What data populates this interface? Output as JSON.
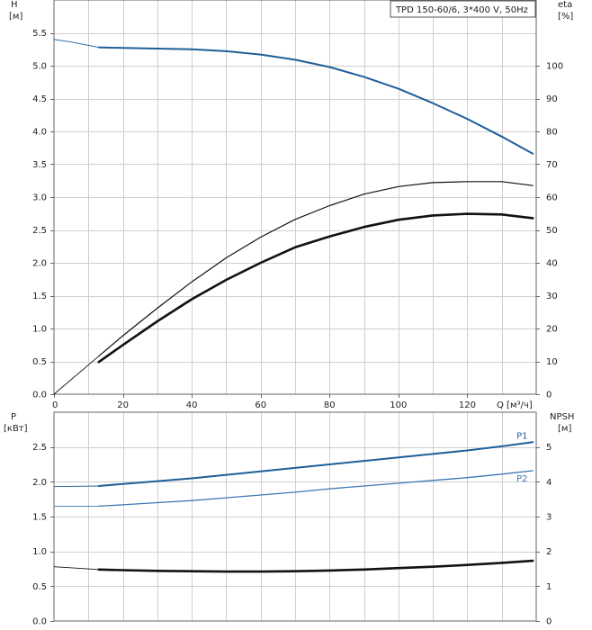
{
  "legend_text": "TPD 150-60/6, 3*400 V, 50Hz",
  "colors": {
    "blue": "#1f5f99",
    "black": "#111111",
    "blue_light": "#3d78b3"
  },
  "chart_data": [
    {
      "type": "line",
      "xlabel": "Q [м³/ч]",
      "xlim": [
        0,
        140
      ],
      "x_ticks": [
        0,
        20,
        40,
        60,
        80,
        100,
        120
      ],
      "ylabel_left": "H\n[м]",
      "ylim_left": [
        0,
        6
      ],
      "left_ticks": [
        "0.0",
        "0.5",
        "1.0",
        "1.5",
        "2.0",
        "2.5",
        "3.0",
        "3.5",
        "4.0",
        "4.5",
        "5.0",
        "5.5"
      ],
      "ylabel_right": "eta\n[%]",
      "ylim_right": [
        0,
        120
      ],
      "right_ticks": [
        "0",
        "10",
        "20",
        "30",
        "40",
        "50",
        "60",
        "70",
        "80",
        "90",
        "100"
      ],
      "grid": true,
      "series": [
        {
          "key": "H",
          "axis": "left",
          "color": "#1f5f99",
          "width": 2,
          "thin_x": [
            0,
            5,
            10,
            13
          ],
          "thin_y": [
            5.4,
            5.36,
            5.31,
            5.28
          ],
          "x": [
            13,
            20,
            30,
            40,
            50,
            60,
            70,
            80,
            90,
            100,
            110,
            120,
            130,
            139
          ],
          "y": [
            5.28,
            5.27,
            5.26,
            5.25,
            5.22,
            5.17,
            5.09,
            4.98,
            4.83,
            4.65,
            4.43,
            4.19,
            3.92,
            3.66
          ]
        },
        {
          "key": "eta_thin",
          "axis": "right",
          "color": "#111111",
          "width": 1.2,
          "thin_x": [
            0,
            13
          ],
          "thin_y": [
            0,
            11.6
          ],
          "x": [
            13,
            20,
            30,
            40,
            50,
            60,
            70,
            80,
            90,
            100,
            110,
            120,
            130,
            139
          ],
          "y": [
            11.6,
            17.8,
            26.2,
            34.2,
            41.5,
            47.8,
            53.2,
            57.4,
            60.9,
            63.2,
            64.4,
            64.7,
            64.7,
            63.5
          ]
        },
        {
          "key": "eta_thick",
          "axis": "right",
          "color": "#111111",
          "width": 2.6,
          "thin_x": [],
          "thin_y": [],
          "x": [
            13,
            20,
            30,
            40,
            50,
            60,
            70,
            80,
            90,
            100,
            110,
            120,
            130,
            139
          ],
          "y": [
            9.8,
            15.0,
            22.2,
            28.9,
            34.8,
            40.0,
            44.7,
            48.0,
            50.9,
            53.1,
            54.4,
            54.9,
            54.7,
            53.6
          ]
        }
      ]
    },
    {
      "type": "line",
      "xlim": [
        0,
        140
      ],
      "ylabel_left": "P\n[кВт]",
      "ylim_left": [
        0,
        3.0
      ],
      "left_ticks": [
        "0.0",
        "0.5",
        "1.0",
        "1.5",
        "2.0",
        "2.5"
      ],
      "ylabel_right": "NPSH\n[м]",
      "ylim_right": [
        0,
        6
      ],
      "right_ticks": [
        "0",
        "1",
        "2",
        "3",
        "4",
        "5"
      ],
      "grid": true,
      "series": [
        {
          "key": "P1",
          "name": "P1",
          "axis": "left",
          "color": "#1f5f99",
          "width": 2,
          "thin_x": [
            0,
            13
          ],
          "thin_y": [
            1.93,
            1.94
          ],
          "x": [
            13,
            20,
            30,
            40,
            50,
            60,
            70,
            80,
            90,
            100,
            110,
            120,
            130,
            139
          ],
          "y": [
            1.94,
            1.97,
            2.01,
            2.05,
            2.1,
            2.15,
            2.2,
            2.25,
            2.3,
            2.35,
            2.4,
            2.45,
            2.51,
            2.57
          ]
        },
        {
          "key": "P2",
          "name": "P2",
          "axis": "left",
          "color": "#3d78b3",
          "width": 1.3,
          "thin_x": [
            0,
            13
          ],
          "thin_y": [
            1.65,
            1.65
          ],
          "x": [
            13,
            20,
            30,
            40,
            50,
            60,
            70,
            80,
            90,
            100,
            110,
            120,
            130,
            139
          ],
          "y": [
            1.65,
            1.67,
            1.7,
            1.73,
            1.77,
            1.81,
            1.85,
            1.9,
            1.94,
            1.98,
            2.02,
            2.06,
            2.11,
            2.16
          ]
        },
        {
          "key": "NPSH",
          "axis": "right",
          "color": "#111111",
          "width": 2.6,
          "thin_x": [
            0,
            13
          ],
          "thin_y": [
            1.56,
            1.48
          ],
          "x": [
            13,
            20,
            30,
            40,
            50,
            60,
            70,
            80,
            90,
            100,
            110,
            120,
            130,
            139
          ],
          "y": [
            1.48,
            1.46,
            1.44,
            1.43,
            1.42,
            1.42,
            1.43,
            1.45,
            1.48,
            1.52,
            1.56,
            1.61,
            1.67,
            1.73
          ]
        }
      ]
    }
  ]
}
